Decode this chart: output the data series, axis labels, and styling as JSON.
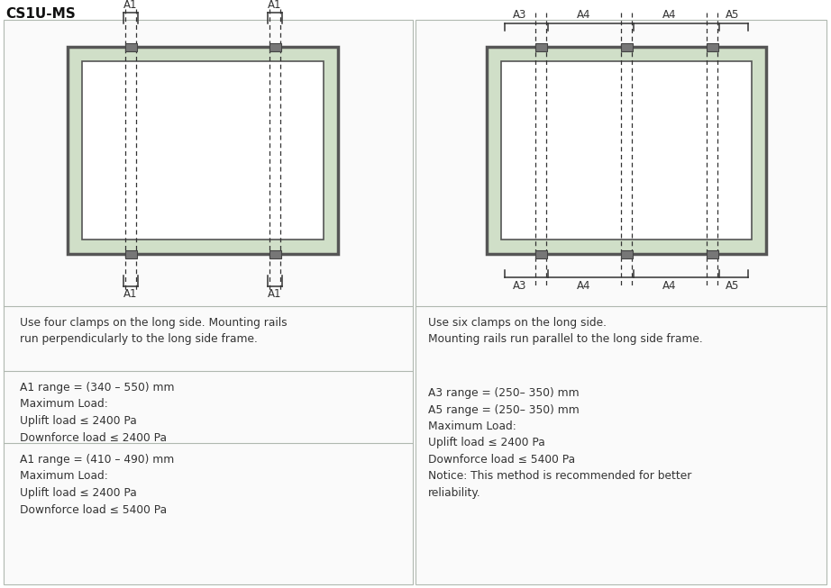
{
  "title": "CS1U-MS",
  "title_fontsize": 11,
  "title_fontweight": "bold",
  "bg_color": "#ffffff",
  "panel_frame_color": "#d0dfc8",
  "panel_inner_color": "#ffffff",
  "clamp_color": "#777777",
  "clamp_edge_color": "#444444",
  "divider_color": "#b0b8b0",
  "box_border_color": "#b0b8b0",
  "text_color": "#333333",
  "bracket_color": "#333333",
  "left_desc": "Use four clamps on the long side. Mounting rails\nrun perpendicularly to the long side frame.",
  "left_text1": "A1 range = (340 – 550) mm\nMaximum Load:\nUplift load ≤ 2400 Pa\nDownforce load ≤ 2400 Pa",
  "left_text2": "A1 range = (410 – 490) mm\nMaximum Load:\nUplift load ≤ 2400 Pa\nDownforce load ≤ 5400 Pa",
  "right_desc": "Use six clamps on the long side.\nMounting rails run parallel to the long side frame.",
  "right_text1": "A3 range = (250– 350) mm\nA5 range = (250– 350) mm\nMaximum Load:\nUplift load ≤ 2400 Pa\nDownforce load ≤ 5400 Pa\nNotice: This method is recommended for better\nreliability."
}
